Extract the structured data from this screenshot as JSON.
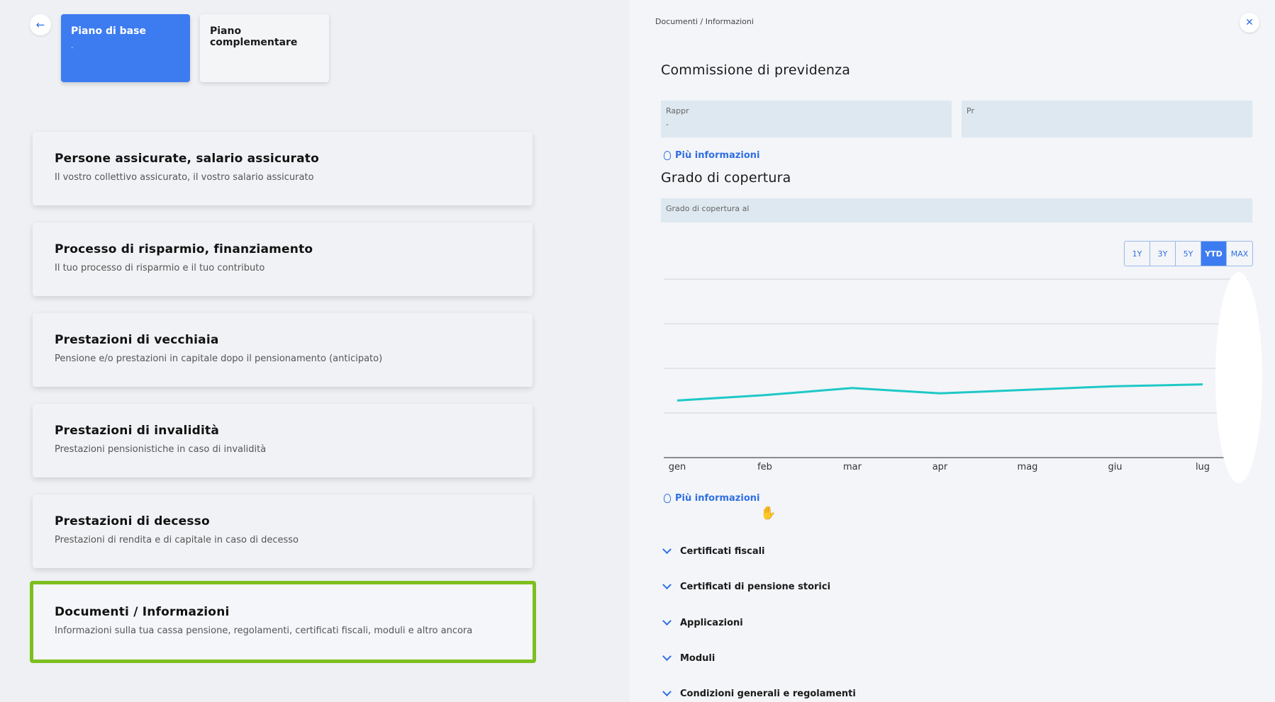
{
  "left": {
    "back_icon": "arrow-left-icon",
    "tabs": [
      {
        "label": "Piano di base",
        "sub": "-"
      },
      {
        "label": "Piano complementare"
      }
    ],
    "cards": [
      {
        "title": "Persone assicurate, salario assicurato",
        "desc": "Il vostro collettivo assicurato, il vostro salario assicurato"
      },
      {
        "title": "Processo di risparmio, finanziamento",
        "desc": "Il tuo processo di risparmio e il tuo contributo"
      },
      {
        "title": "Prestazioni di vecchiaia",
        "desc": "Pensione e/o prestazioni in capitale dopo il pensionamento (anticipato)"
      },
      {
        "title": "Prestazioni di invalidità",
        "desc": "Prestazioni pensionistiche in caso di invalidità"
      },
      {
        "title": "Prestazioni di decesso",
        "desc": "Prestazioni di rendita e di capitale in caso di decesso"
      },
      {
        "title": "Documenti / Informazioni",
        "desc": "Informazioni sulla tua cassa pensione, regolamenti, certificati fiscali, moduli e altro ancora"
      }
    ],
    "selected_color": "#7cbf1f"
  },
  "right": {
    "breadcrumb": "Documenti / Informazioni",
    "close_icon": "close-icon",
    "commission_title": "Commissione di previdenza",
    "field1_label": "Rappr",
    "field1_value": "-",
    "field2_label": "Pr",
    "info_link": "Più informazioni",
    "coverage_title": "Grado di copertura",
    "coverage_field": "Grado di copertura al",
    "ranges": [
      "1Y",
      "3Y",
      "5Y",
      "YTD",
      "MAX"
    ],
    "active_range": "YTD",
    "accordion": [
      "Certificati fiscali",
      "Certificati di pensione storici",
      "Applicazioni",
      "Moduli",
      "Condizioni generali e regolamenti"
    ],
    "accent": "#3d7cf0"
  },
  "chart_data": {
    "type": "line",
    "categories": [
      "gen",
      "feb",
      "mar",
      "apr",
      "mag",
      "giu",
      "lug"
    ],
    "values": [
      0.32,
      0.35,
      0.39,
      0.36,
      0.38,
      0.4,
      0.41
    ],
    "color": "#1ec8c8",
    "grid": true
  }
}
